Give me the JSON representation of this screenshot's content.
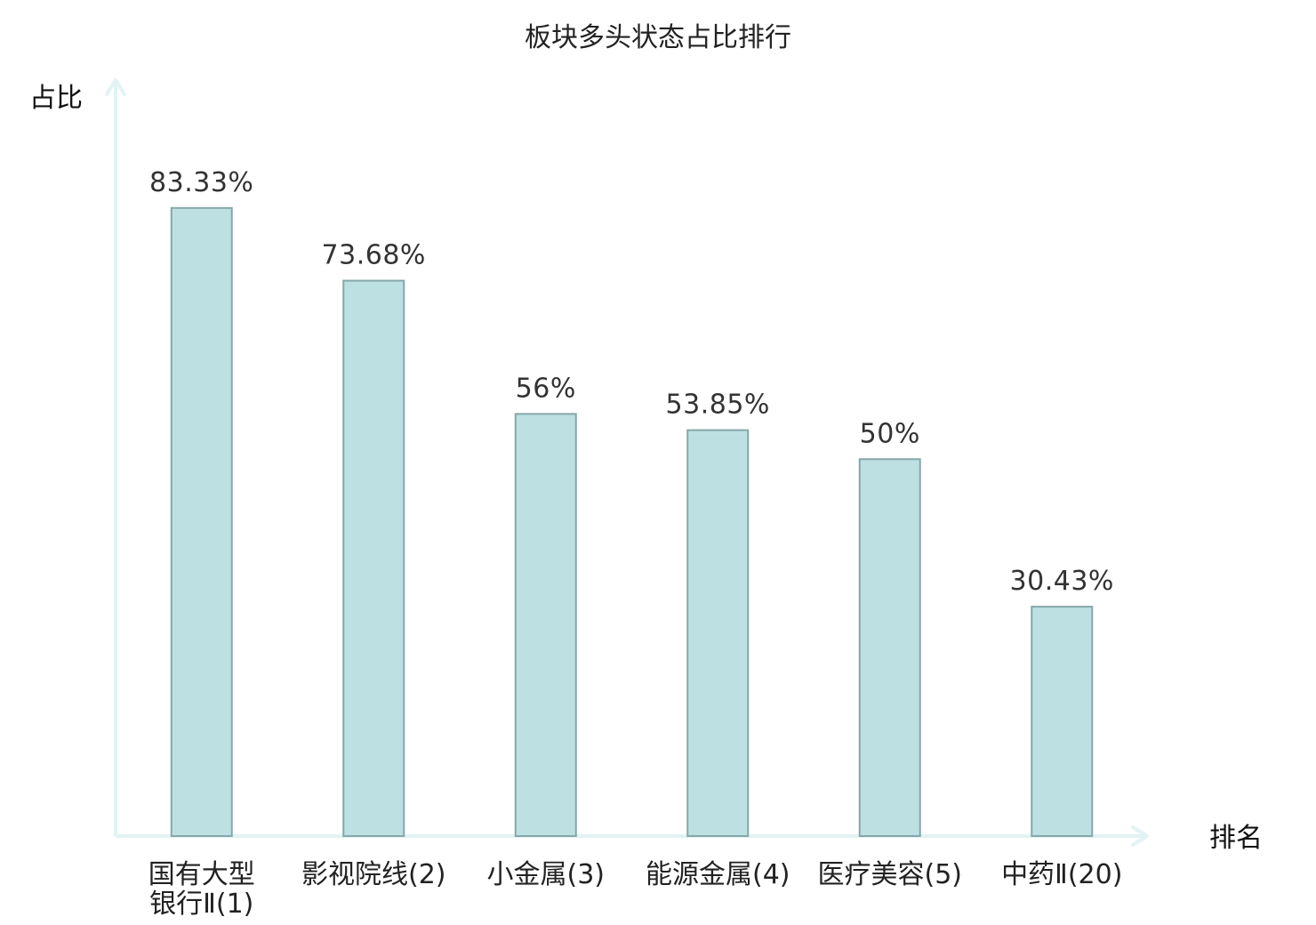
{
  "chart_data": {
    "type": "bar",
    "title": "板块多头状态占比排行",
    "xlabel": "排名",
    "ylabel": "占比",
    "categories": [
      [
        "国有大型",
        "银行Ⅱ(1)"
      ],
      [
        "影视院线(2)"
      ],
      [
        "小金属(3)"
      ],
      [
        "能源金属(4)"
      ],
      [
        "医疗美容(5)"
      ],
      [
        "中药Ⅱ(20)"
      ]
    ],
    "values": [
      83.33,
      73.68,
      56,
      53.85,
      50,
      30.43
    ],
    "value_labels": [
      "83.33%",
      "73.68%",
      "56%",
      "53.85%",
      "50%",
      "30.43%"
    ],
    "ylim": [
      0,
      100
    ],
    "grid": false,
    "legend": "none",
    "highlight_index": 5,
    "colors": {
      "bar_fill": "#bde0e3",
      "bar_stroke": "#86a7a8",
      "axis": "#e1f3f2",
      "highlight_text": "#e8261f",
      "normal_text": "#222222"
    }
  }
}
